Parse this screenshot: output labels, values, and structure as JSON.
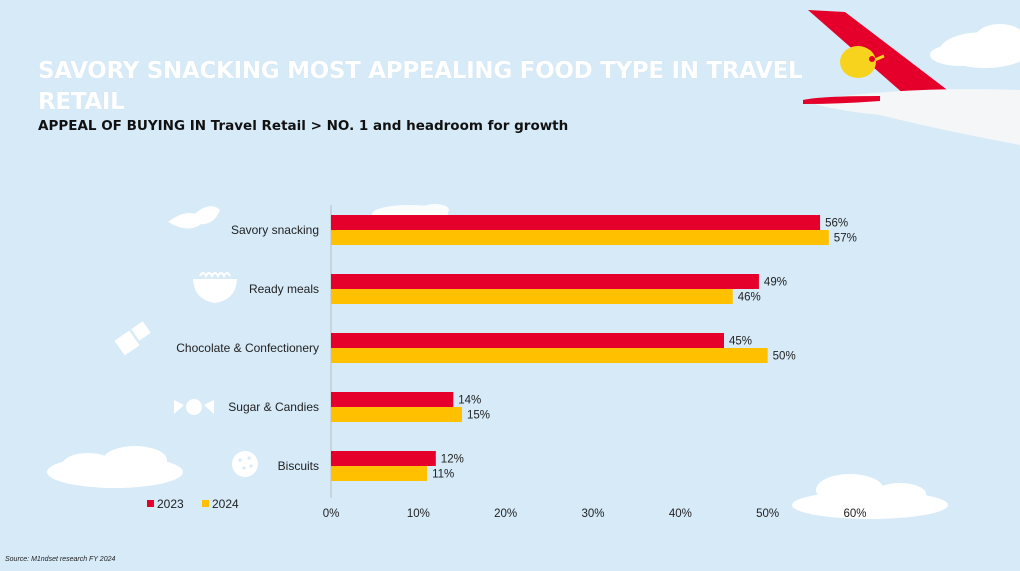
{
  "title": "SAVORY SNACKING MOST APPEALING FOOD TYPE IN TRAVEL RETAIL",
  "subtitle": "APPEAL OF BUYING IN Travel Retail > NO. 1 and headroom for growth",
  "source": "Source: M1ndset research FY 2024",
  "colors": {
    "background": "#d6eaf8",
    "s2023": "#e4002b",
    "s2024": "#ffc000",
    "cloud": "#ffffff",
    "tail": "#e4002b",
    "tail_logo": "#f7d31e"
  },
  "icons": [
    "chips-icon",
    "bowl-icon",
    "chocolate-icon",
    "candy-icon",
    "cookie-icon"
  ],
  "chart_data": {
    "type": "bar",
    "orientation": "horizontal",
    "categories": [
      "Savory snacking",
      "Ready meals",
      "Chocolate & Confectionery",
      "Sugar & Candies",
      "Biscuits"
    ],
    "series": [
      {
        "name": "2023",
        "values": [
          56,
          49,
          45,
          14,
          12
        ],
        "labels": [
          "56%",
          "49%",
          "45%",
          "14%",
          "12%"
        ]
      },
      {
        "name": "2024",
        "values": [
          57,
          46,
          50,
          15,
          11
        ],
        "labels": [
          "57%",
          "46%",
          "50%",
          "15%",
          "11%"
        ]
      }
    ],
    "xlim": [
      0,
      60
    ],
    "ticks": [
      "0%",
      "10%",
      "20%",
      "30%",
      "40%",
      "50%",
      "60%"
    ],
    "legend": "bottom-left",
    "grid": false
  }
}
